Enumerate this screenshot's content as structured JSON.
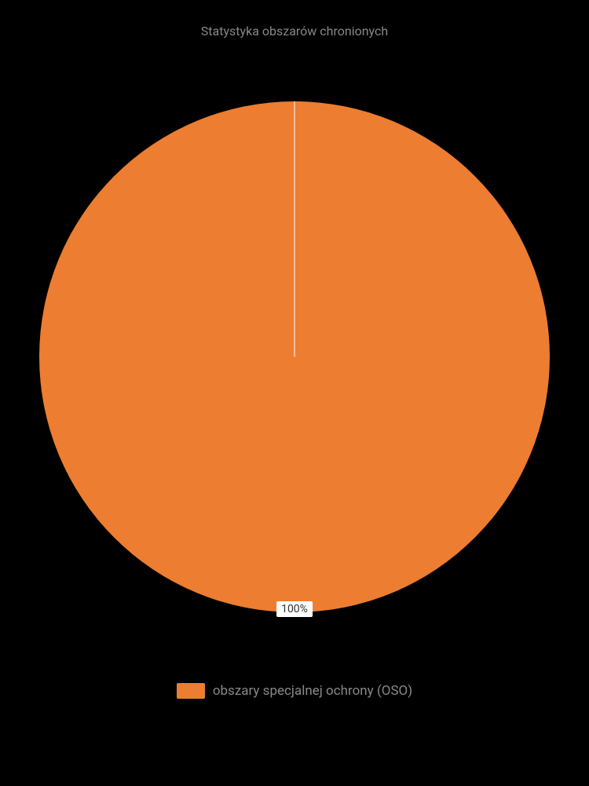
{
  "chart": {
    "type": "pie",
    "title": "Statystyka obszarów chronionych",
    "title_fontsize": 16,
    "title_color": "#888888",
    "background_color": "#000000",
    "slices": [
      {
        "label": "obszary specjalnej ochrony (OSO)",
        "value": 100,
        "percent_label": "100%",
        "color": "#ed7d31"
      }
    ],
    "radius": 325,
    "separator_line_color": "#ffffff",
    "separator_line_width": 1,
    "data_label_bg": "#ffffff",
    "data_label_color": "#333333",
    "data_label_fontsize": 14,
    "legend": {
      "position": "bottom",
      "swatch_width": 36,
      "swatch_height": 20,
      "label_color": "#888888",
      "label_fontsize": 17
    }
  }
}
